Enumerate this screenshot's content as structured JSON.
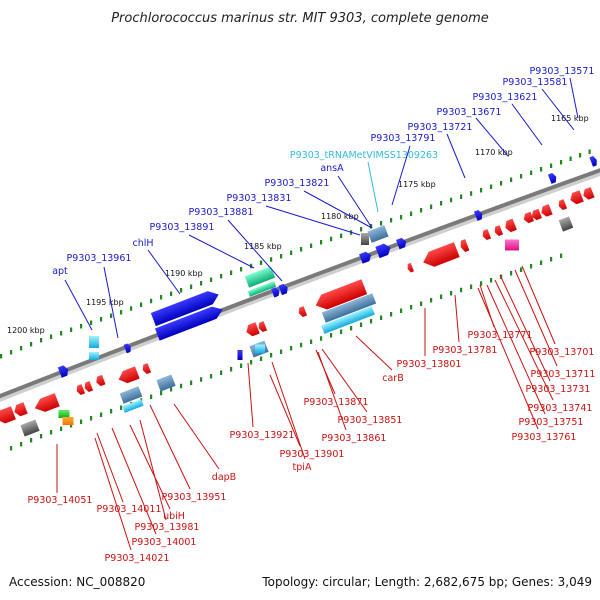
{
  "title": "Prochlorococcus marinus str. MIT 9303, complete genome",
  "footer": {
    "accession": "Accession: NC_008820",
    "summary": "Topology: circular; Length: 2,682,675 bp; Genes: 3,049"
  },
  "colors": {
    "backbone": "#888888",
    "forward_label": "#1a1acc",
    "reverse_label": "#cc1111",
    "trna_label": "#33bbdd",
    "forward_gene": "#1a1aee",
    "reverse_gene": "#ee1111",
    "tick": "#228822"
  },
  "kbp_marks": [
    "1200 kbp",
    "1195 kbp",
    "1190 kbp",
    "1185 kbp",
    "1180 kbp",
    "1175 kbp",
    "1170 kbp",
    "1165 kbp"
  ],
  "forward_labels": [
    "apt",
    "P9303_13961",
    "chlH",
    "P9303_13891",
    "P9303_13881",
    "P9303_13831",
    "P9303_13821",
    "ansA",
    "P9303_tRNAMetVIMSS1309263",
    "P9303_13791",
    "P9303_13721",
    "P9303_13671",
    "P9303_13621",
    "P9303_13581",
    "P9303_13571"
  ],
  "reverse_labels": [
    "P9303_14051",
    "P9303_14011",
    "P9303_14021",
    "P9303_14001",
    "ubiH",
    "P9303_13981",
    "P9303_13951",
    "dapB",
    "P9303_13921",
    "P9303_13901",
    "tpiA",
    "P9303_13871",
    "P9303_13851",
    "P9303_13861",
    "carB",
    "P9303_13801",
    "P9303_13781",
    "P9303_13771",
    "P9303_13701",
    "P9303_13711",
    "P9303_13731",
    "P9303_13741",
    "P9303_13751",
    "P9303_13761"
  ]
}
